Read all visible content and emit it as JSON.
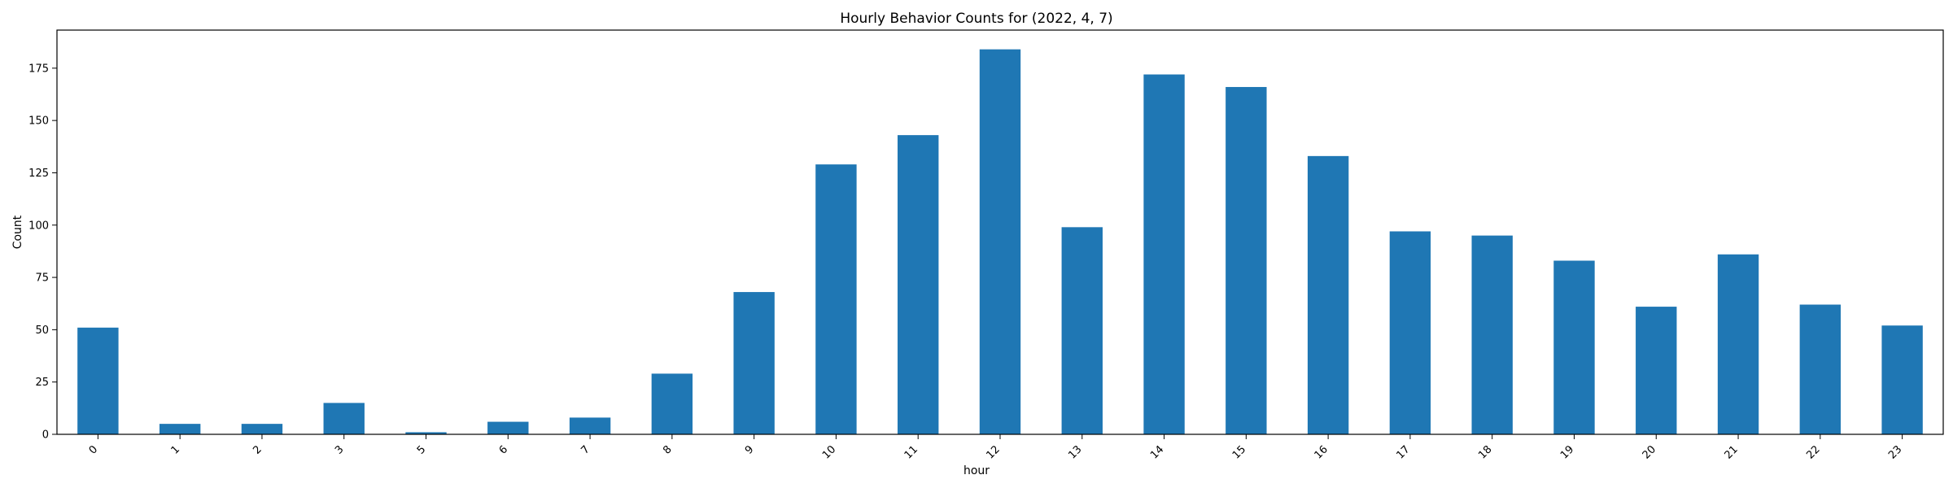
{
  "chart_data": {
    "type": "bar",
    "title": "Hourly Behavior Counts for (2022, 4, 7)",
    "xlabel": "hour",
    "ylabel": "Count",
    "categories": [
      "0",
      "1",
      "2",
      "3",
      "5",
      "6",
      "7",
      "8",
      "9",
      "10",
      "11",
      "12",
      "13",
      "14",
      "15",
      "16",
      "17",
      "18",
      "19",
      "20",
      "21",
      "22",
      "23"
    ],
    "values": [
      51,
      5,
      5,
      15,
      1,
      6,
      8,
      29,
      68,
      129,
      143,
      184,
      99,
      172,
      166,
      133,
      97,
      95,
      83,
      61,
      86,
      62,
      52
    ],
    "ylim": [
      0,
      193.2
    ],
    "yticks": [
      0,
      25,
      50,
      75,
      100,
      125,
      150,
      175
    ],
    "grid": false,
    "bar_color": "#1f77b4",
    "xtick_rotation": 45
  }
}
